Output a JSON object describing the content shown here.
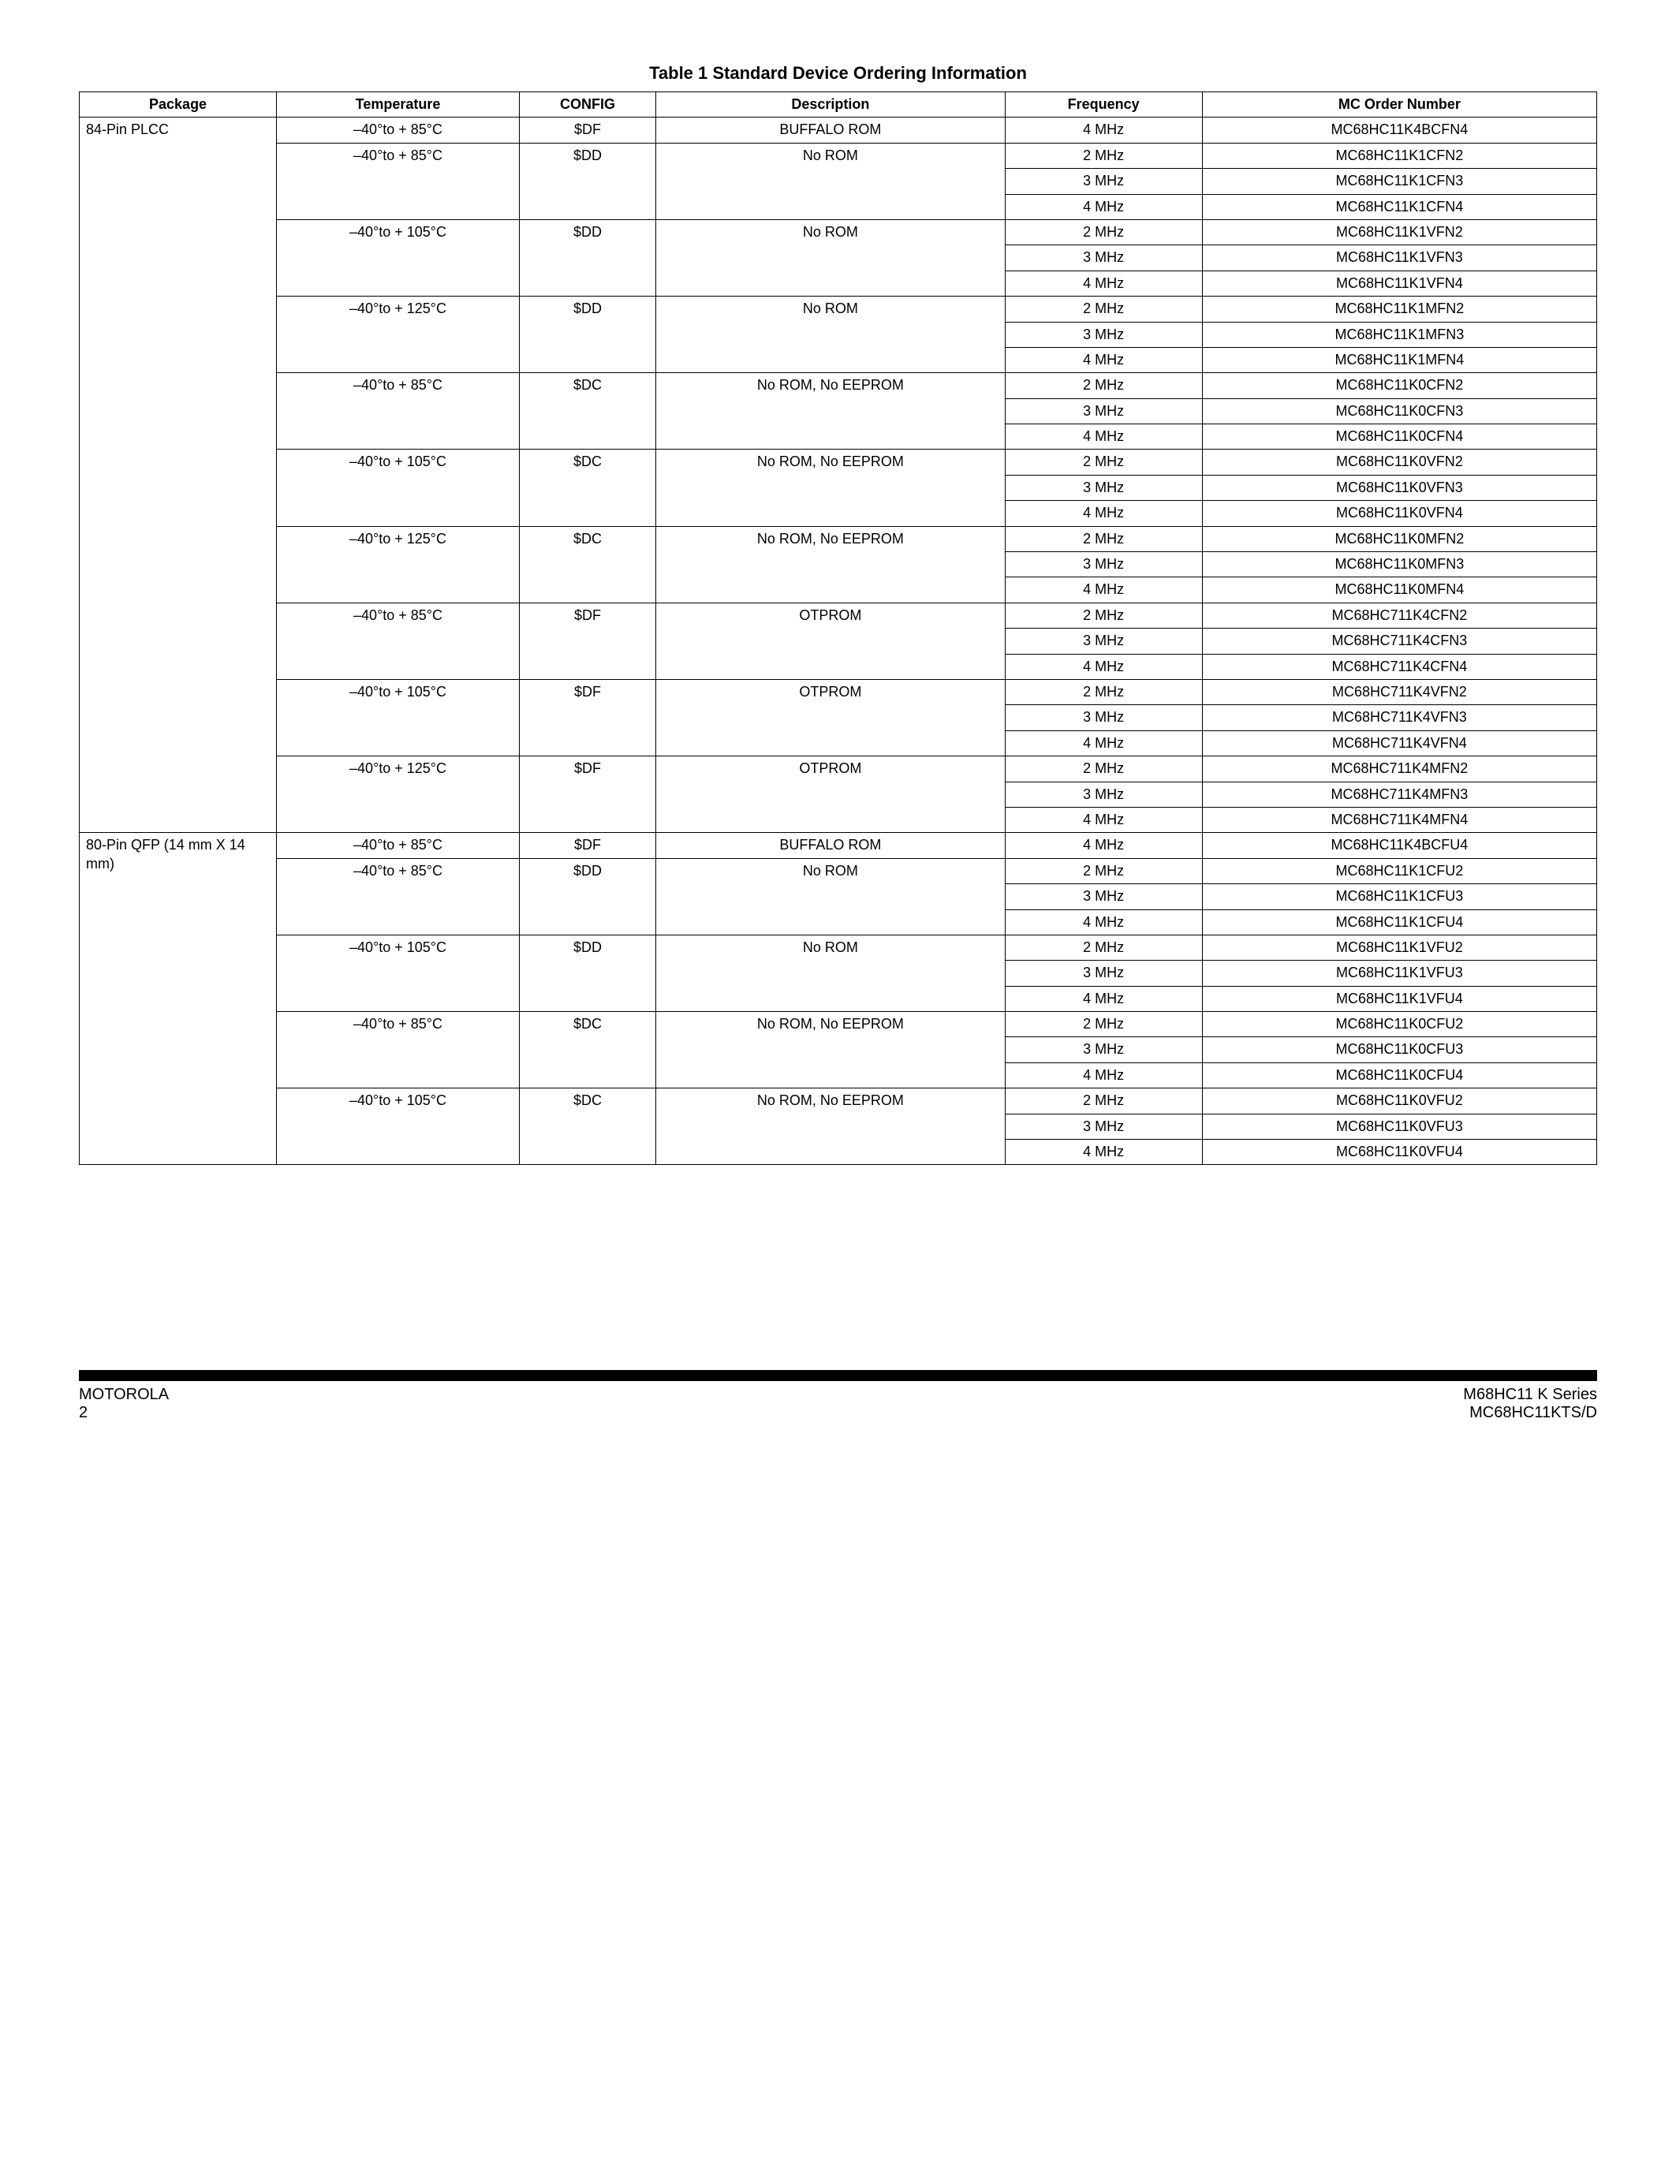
{
  "title": "Table 1 Standard Device Ordering Information",
  "headers": {
    "package": "Package",
    "temperature": "Temperature",
    "config": "CONFIG",
    "description": "Description",
    "frequency": "Frequency",
    "order": "MC Order Number"
  },
  "rows": [
    {
      "pkg": "84-Pin PLCC",
      "temp": "–40°to + 85°C",
      "cfg": "$DF",
      "desc": "BUFFALO ROM",
      "freq": "4 MHz",
      "ord": "MC68HC11K4BCFN4"
    },
    {
      "pkg": "",
      "temp": "–40°to + 85°C",
      "cfg": "$DD",
      "desc": "No ROM",
      "freq": "2 MHz",
      "ord": "MC68HC11K1CFN2"
    },
    {
      "pkg": "",
      "temp": "",
      "cfg": "",
      "desc": "",
      "freq": "3 MHz",
      "ord": "MC68HC11K1CFN3"
    },
    {
      "pkg": "",
      "temp": "",
      "cfg": "",
      "desc": "",
      "freq": "4 MHz",
      "ord": "MC68HC11K1CFN4"
    },
    {
      "pkg": "",
      "temp": "–40°to + 105°C",
      "cfg": "$DD",
      "desc": "No ROM",
      "freq": "2 MHz",
      "ord": "MC68HC11K1VFN2"
    },
    {
      "pkg": "",
      "temp": "",
      "cfg": "",
      "desc": "",
      "freq": "3 MHz",
      "ord": "MC68HC11K1VFN3"
    },
    {
      "pkg": "",
      "temp": "",
      "cfg": "",
      "desc": "",
      "freq": "4 MHz",
      "ord": "MC68HC11K1VFN4"
    },
    {
      "pkg": "",
      "temp": "–40°to + 125°C",
      "cfg": "$DD",
      "desc": "No ROM",
      "freq": "2 MHz",
      "ord": "MC68HC11K1MFN2"
    },
    {
      "pkg": "",
      "temp": "",
      "cfg": "",
      "desc": "",
      "freq": "3 MHz",
      "ord": "MC68HC11K1MFN3"
    },
    {
      "pkg": "",
      "temp": "",
      "cfg": "",
      "desc": "",
      "freq": "4 MHz",
      "ord": "MC68HC11K1MFN4"
    },
    {
      "pkg": "",
      "temp": "–40°to + 85°C",
      "cfg": "$DC",
      "desc": "No ROM, No EEPROM",
      "freq": "2 MHz",
      "ord": "MC68HC11K0CFN2"
    },
    {
      "pkg": "",
      "temp": "",
      "cfg": "",
      "desc": "",
      "freq": "3 MHz",
      "ord": "MC68HC11K0CFN3"
    },
    {
      "pkg": "",
      "temp": "",
      "cfg": "",
      "desc": "",
      "freq": "4 MHz",
      "ord": "MC68HC11K0CFN4"
    },
    {
      "pkg": "",
      "temp": "–40°to + 105°C",
      "cfg": "$DC",
      "desc": "No ROM, No EEPROM",
      "freq": "2 MHz",
      "ord": "MC68HC11K0VFN2"
    },
    {
      "pkg": "",
      "temp": "",
      "cfg": "",
      "desc": "",
      "freq": "3 MHz",
      "ord": "MC68HC11K0VFN3"
    },
    {
      "pkg": "",
      "temp": "",
      "cfg": "",
      "desc": "",
      "freq": "4 MHz",
      "ord": "MC68HC11K0VFN4"
    },
    {
      "pkg": "",
      "temp": "–40°to + 125°C",
      "cfg": "$DC",
      "desc": "No ROM, No EEPROM",
      "freq": "2 MHz",
      "ord": "MC68HC11K0MFN2"
    },
    {
      "pkg": "",
      "temp": "",
      "cfg": "",
      "desc": "",
      "freq": "3 MHz",
      "ord": "MC68HC11K0MFN3"
    },
    {
      "pkg": "",
      "temp": "",
      "cfg": "",
      "desc": "",
      "freq": "4 MHz",
      "ord": "MC68HC11K0MFN4"
    },
    {
      "pkg": "",
      "temp": "–40°to + 85°C",
      "cfg": "$DF",
      "desc": "OTPROM",
      "freq": "2 MHz",
      "ord": "MC68HC711K4CFN2"
    },
    {
      "pkg": "",
      "temp": "",
      "cfg": "",
      "desc": "",
      "freq": "3 MHz",
      "ord": "MC68HC711K4CFN3"
    },
    {
      "pkg": "",
      "temp": "",
      "cfg": "",
      "desc": "",
      "freq": "4 MHz",
      "ord": "MC68HC711K4CFN4"
    },
    {
      "pkg": "",
      "temp": "–40°to + 105°C",
      "cfg": "$DF",
      "desc": "OTPROM",
      "freq": "2 MHz",
      "ord": "MC68HC711K4VFN2"
    },
    {
      "pkg": "",
      "temp": "",
      "cfg": "",
      "desc": "",
      "freq": "3 MHz",
      "ord": "MC68HC711K4VFN3"
    },
    {
      "pkg": "",
      "temp": "",
      "cfg": "",
      "desc": "",
      "freq": "4 MHz",
      "ord": "MC68HC711K4VFN4"
    },
    {
      "pkg": "",
      "temp": "–40°to + 125°C",
      "cfg": "$DF",
      "desc": "OTPROM",
      "freq": "2 MHz",
      "ord": "MC68HC711K4MFN2"
    },
    {
      "pkg": "",
      "temp": "",
      "cfg": "",
      "desc": "",
      "freq": "3 MHz",
      "ord": "MC68HC711K4MFN3"
    },
    {
      "pkg": "",
      "temp": "",
      "cfg": "",
      "desc": "",
      "freq": "4 MHz",
      "ord": "MC68HC711K4MFN4"
    },
    {
      "pkg": "80-Pin QFP (14 mm X 14 mm)",
      "temp": "–40°to + 85°C",
      "cfg": "$DF",
      "desc": "BUFFALO ROM",
      "freq": "4 MHz",
      "ord": "MC68HC11K4BCFU4"
    },
    {
      "pkg": "",
      "temp": "–40°to + 85°C",
      "cfg": "$DD",
      "desc": "No ROM",
      "freq": "2 MHz",
      "ord": "MC68HC11K1CFU2"
    },
    {
      "pkg": "",
      "temp": "",
      "cfg": "",
      "desc": "",
      "freq": "3 MHz",
      "ord": "MC68HC11K1CFU3"
    },
    {
      "pkg": "",
      "temp": "",
      "cfg": "",
      "desc": "",
      "freq": "4 MHz",
      "ord": "MC68HC11K1CFU4"
    },
    {
      "pkg": "",
      "temp": "–40°to + 105°C",
      "cfg": "$DD",
      "desc": "No ROM",
      "freq": "2 MHz",
      "ord": "MC68HC11K1VFU2"
    },
    {
      "pkg": "",
      "temp": "",
      "cfg": "",
      "desc": "",
      "freq": "3 MHz",
      "ord": "MC68HC11K1VFU3"
    },
    {
      "pkg": "",
      "temp": "",
      "cfg": "",
      "desc": "",
      "freq": "4 MHz",
      "ord": "MC68HC11K1VFU4"
    },
    {
      "pkg": "",
      "temp": "–40°to + 85°C",
      "cfg": "$DC",
      "desc": "No ROM, No EEPROM",
      "freq": "2 MHz",
      "ord": "MC68HC11K0CFU2"
    },
    {
      "pkg": "",
      "temp": "",
      "cfg": "",
      "desc": "",
      "freq": "3 MHz",
      "ord": "MC68HC11K0CFU3"
    },
    {
      "pkg": "",
      "temp": "",
      "cfg": "",
      "desc": "",
      "freq": "4 MHz",
      "ord": "MC68HC11K0CFU4"
    },
    {
      "pkg": "",
      "temp": "–40°to + 105°C",
      "cfg": "$DC",
      "desc": "No ROM, No EEPROM",
      "freq": "2 MHz",
      "ord": "MC68HC11K0VFU2"
    },
    {
      "pkg": "",
      "temp": "",
      "cfg": "",
      "desc": "",
      "freq": "3 MHz",
      "ord": "MC68HC11K0VFU3"
    },
    {
      "pkg": "",
      "temp": "",
      "cfg": "",
      "desc": "",
      "freq": "4 MHz",
      "ord": "MC68HC11K0VFU4"
    }
  ],
  "footer": {
    "left1": "MOTOROLA",
    "left2": "2",
    "right1": "M68HC11 K Series",
    "right2": "MC68HC11KTS/D"
  },
  "styling": {
    "font_family": "Arial",
    "title_fontsize": 22,
    "cell_fontsize": 18,
    "border_color": "#000000",
    "background_color": "#ffffff",
    "column_widths_pct": {
      "package": 13,
      "temperature": 16,
      "config": 9,
      "description": 23,
      "frequency": 13,
      "order": 26
    }
  }
}
